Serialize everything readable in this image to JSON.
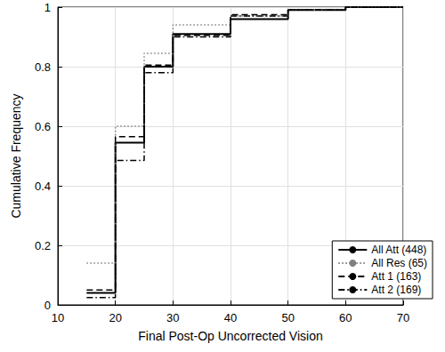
{
  "chart_data": {
    "type": "step",
    "xlabel": "Final Post-Op Uncorrected Vision",
    "ylabel": "Cumulative Frequency",
    "x": [
      15,
      20,
      25,
      30,
      40,
      50,
      60,
      70
    ],
    "series": [
      {
        "name": "All Att (448)",
        "color": "#000000",
        "line_style": "solid",
        "values": [
          0.04,
          0.545,
          0.8,
          0.91,
          0.96,
          0.99,
          1.0,
          1.0
        ]
      },
      {
        "name": "All Res (65)",
        "color": "#808080",
        "line_style": "dotted",
        "values": [
          0.14,
          0.6,
          0.845,
          0.94,
          0.97,
          0.99,
          1.0,
          1.0
        ]
      },
      {
        "name": "Att 1 (163)",
        "color": "#000000",
        "line_style": "dashed",
        "values": [
          0.05,
          0.565,
          0.805,
          0.905,
          0.975,
          0.99,
          1.0,
          1.0
        ]
      },
      {
        "name": "Att 2 (169)",
        "color": "#000000",
        "line_style": "dashdot",
        "values": [
          0.025,
          0.485,
          0.78,
          0.9,
          0.97,
          0.99,
          1.0,
          1.0
        ]
      }
    ],
    "xlim": [
      10,
      70
    ],
    "ylim": [
      0,
      1
    ],
    "xticks": [
      10,
      20,
      30,
      40,
      50,
      60,
      70
    ],
    "yticks": [
      0,
      0.2,
      0.4,
      0.6,
      0.8,
      1
    ],
    "grid": true,
    "legend": "lower right"
  }
}
